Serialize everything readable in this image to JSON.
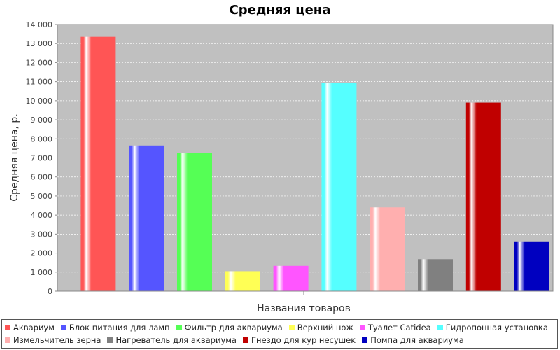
{
  "chart_data": {
    "type": "bar",
    "title": "Средняя цена",
    "xlabel": "Названия товаров",
    "ylabel": "Средняя цена, р.",
    "ylim": [
      0,
      14000
    ],
    "yticks": [
      "0",
      "1 000",
      "2 000",
      "3 000",
      "4 000",
      "5 000",
      "6 000",
      "7 000",
      "8 000",
      "9 000",
      "10 000",
      "11 000",
      "12 000",
      "13 000",
      "14 000"
    ],
    "grid": true,
    "legend_position": "bottom",
    "series": [
      {
        "name": "Аквариум",
        "value": 13350,
        "color": "#ff5555"
      },
      {
        "name": "Блок питания для ламп",
        "value": 7650,
        "color": "#5555ff"
      },
      {
        "name": "Фильтр для аквариума",
        "value": 7250,
        "color": "#55ff55"
      },
      {
        "name": "Верхний нож",
        "value": 1050,
        "color": "#ffff55"
      },
      {
        "name": "Туалет Catidea",
        "value": 1330,
        "color": "#ff55ff"
      },
      {
        "name": "Гидропонная установка",
        "value": 10950,
        "color": "#55ffff"
      },
      {
        "name": "Измельчитель зерна",
        "value": 4400,
        "color": "#ffafaf"
      },
      {
        "name": "Нагреватель для аквариума",
        "value": 1680,
        "color": "#808080"
      },
      {
        "name": "Гнездо для кур несушек",
        "value": 9900,
        "color": "#c00000"
      },
      {
        "name": "Помпа для аквариума",
        "value": 2580,
        "color": "#0000c0"
      }
    ]
  }
}
